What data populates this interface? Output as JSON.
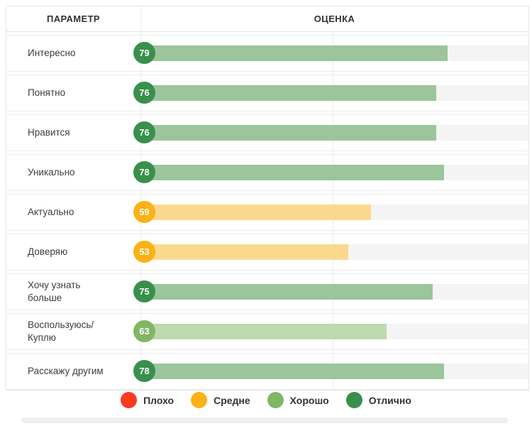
{
  "table": {
    "headers": {
      "parameter": "ПАРАМЕТР",
      "score": "ОЦЕНКА"
    }
  },
  "chart_data": {
    "type": "bar",
    "orientation": "horizontal",
    "title": "",
    "xlabel": "",
    "ylabel": "",
    "xlim": [
      0,
      100
    ],
    "grid": "column-separators",
    "legend_position": "bottom",
    "categories": [
      "Интересно",
      "Понятно",
      "Нравится",
      "Уникально",
      "Актуально",
      "Доверяю",
      "Хочу узнать больше",
      "Воспользуюсь/Куплю",
      "Расскажу другим"
    ],
    "display_labels": [
      "Интересно",
      "Понятно",
      "Нравится",
      "Уникально",
      "Актуально",
      "Доверяю",
      "Хочу узнать\nбольше",
      "Воспользуюсь/Куплю",
      "Расскажу другим"
    ],
    "values": [
      79,
      76,
      76,
      78,
      59,
      53,
      75,
      63,
      78
    ],
    "ratings": [
      "excellent",
      "excellent",
      "excellent",
      "excellent",
      "medium",
      "medium",
      "excellent",
      "good",
      "excellent"
    ],
    "legend": [
      {
        "label": "Плохо",
        "rating": "bad"
      },
      {
        "label": "Средне",
        "rating": "medium"
      },
      {
        "label": "Хорошо",
        "rating": "good"
      },
      {
        "label": "Отлично",
        "rating": "excellent"
      }
    ]
  },
  "colors": {
    "track": "#f4f4f4",
    "ratings": {
      "bad": {
        "circle": "#fb3a1e",
        "bar": "#fdc3b5"
      },
      "medium": {
        "circle": "#fbb116",
        "bar": "#fad98f"
      },
      "good": {
        "circle": "#80b764",
        "bar": "#bed9ad"
      },
      "excellent": {
        "circle": "#38904c",
        "bar": "#9cc59b"
      }
    }
  }
}
